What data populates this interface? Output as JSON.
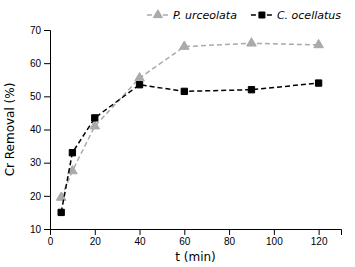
{
  "chart_data": {
    "type": "line",
    "x": [
      5,
      10,
      20,
      40,
      60,
      90,
      120
    ],
    "series": [
      {
        "name": "P. urceolata",
        "color": "#aaaaaa",
        "marker": "triangle",
        "line_style": "dashed",
        "values": [
          19.5,
          27.5,
          41.0,
          55.5,
          65.0,
          66.0,
          65.5
        ]
      },
      {
        "name": "C. ocellatus",
        "color": "#000000",
        "marker": "square",
        "line_style": "dashed",
        "values": [
          15.0,
          33.0,
          43.5,
          53.5,
          51.5,
          52.0,
          54.0
        ]
      }
    ],
    "xlabel": "t (min)",
    "ylabel": "Cr Removal (%)",
    "xlim": [
      0,
      130
    ],
    "ylim": [
      10,
      70
    ],
    "xticks": [
      0,
      20,
      40,
      60,
      80,
      100,
      120
    ],
    "yticks": [
      10,
      20,
      30,
      40,
      50,
      60,
      70
    ],
    "legend": "upper right",
    "grid": false
  }
}
